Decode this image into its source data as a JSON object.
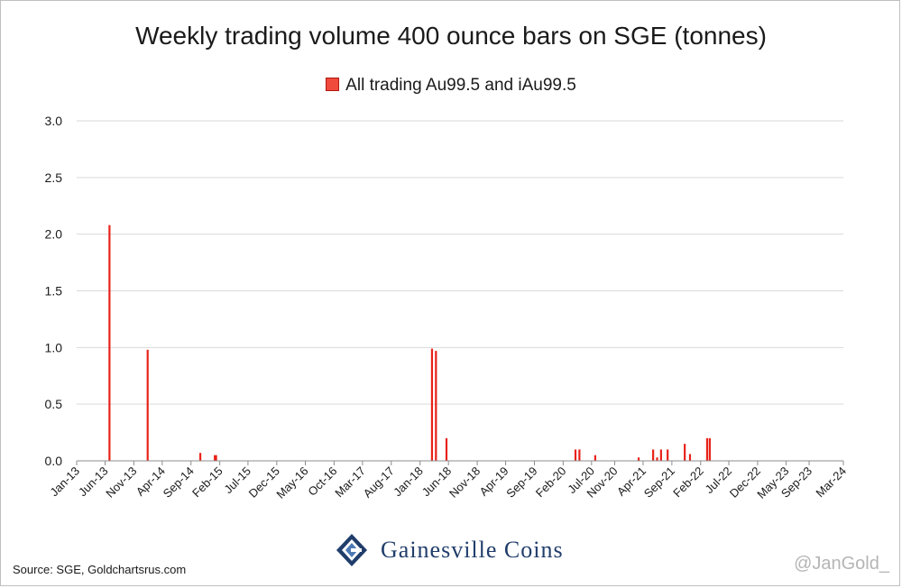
{
  "chart_data": {
    "type": "bar",
    "title": "Weekly trading volume 400 ounce bars on SGE (tonnes)",
    "legend": {
      "position": "top",
      "entries": [
        "All trading Au99.5 and iAu99.5"
      ]
    },
    "series": [
      {
        "name": "All trading Au99.5 and iAu99.5",
        "color": "#e8231a",
        "points": [
          {
            "x": "2013-06-24",
            "y": 2.08
          },
          {
            "x": "2014-01-13",
            "y": 0.98
          },
          {
            "x": "2014-10-20",
            "y": 0.07
          },
          {
            "x": "2015-01-05",
            "y": 0.05
          },
          {
            "x": "2015-01-12",
            "y": 0.05
          },
          {
            "x": "2018-03-05",
            "y": 0.99
          },
          {
            "x": "2018-03-26",
            "y": 0.97
          },
          {
            "x": "2018-05-21",
            "y": 0.2
          },
          {
            "x": "2020-04-06",
            "y": 0.1
          },
          {
            "x": "2020-04-27",
            "y": 0.1
          },
          {
            "x": "2020-07-20",
            "y": 0.05
          },
          {
            "x": "2021-03-08",
            "y": 0.03
          },
          {
            "x": "2021-05-24",
            "y": 0.1
          },
          {
            "x": "2021-06-14",
            "y": 0.03
          },
          {
            "x": "2021-07-05",
            "y": 0.1
          },
          {
            "x": "2021-08-09",
            "y": 0.1
          },
          {
            "x": "2021-11-08",
            "y": 0.15
          },
          {
            "x": "2021-12-06",
            "y": 0.06
          },
          {
            "x": "2022-03-07",
            "y": 0.2
          },
          {
            "x": "2022-03-21",
            "y": 0.2
          }
        ]
      }
    ],
    "x_axis": {
      "range": [
        "2013-01-01",
        "2024-03-01"
      ],
      "ticks": [
        {
          "date": "2013-01-01",
          "label": "Jan-13"
        },
        {
          "date": "2013-06-01",
          "label": "Jun-13"
        },
        {
          "date": "2013-11-01",
          "label": "Nov-13"
        },
        {
          "date": "2014-04-01",
          "label": "Apr-14"
        },
        {
          "date": "2014-09-01",
          "label": "Sep-14"
        },
        {
          "date": "2015-02-01",
          "label": "Feb-15"
        },
        {
          "date": "2015-07-01",
          "label": "Jul-15"
        },
        {
          "date": "2015-12-01",
          "label": "Dec-15"
        },
        {
          "date": "2016-05-01",
          "label": "May-16"
        },
        {
          "date": "2016-10-01",
          "label": "Oct-16"
        },
        {
          "date": "2017-03-01",
          "label": "Mar-17"
        },
        {
          "date": "2017-08-01",
          "label": "Aug-17"
        },
        {
          "date": "2018-01-01",
          "label": "Jan-18"
        },
        {
          "date": "2018-06-01",
          "label": "Jun-18"
        },
        {
          "date": "2018-11-01",
          "label": "Nov-18"
        },
        {
          "date": "2019-04-01",
          "label": "Apr-19"
        },
        {
          "date": "2019-09-01",
          "label": "Sep-19"
        },
        {
          "date": "2020-02-01",
          "label": "Feb-20"
        },
        {
          "date": "2020-07-01",
          "label": "Jul-20"
        },
        {
          "date": "2020-11-01",
          "label": "Nov-20"
        },
        {
          "date": "2021-04-01",
          "label": "Apr-21"
        },
        {
          "date": "2021-09-01",
          "label": "Sep-21"
        },
        {
          "date": "2022-02-01",
          "label": "Feb-22"
        },
        {
          "date": "2022-07-01",
          "label": "Jul-22"
        },
        {
          "date": "2022-12-01",
          "label": "Dec-22"
        },
        {
          "date": "2023-05-01",
          "label": "May-23"
        },
        {
          "date": "2023-09-01",
          "label": "Sep-23"
        },
        {
          "date": "2024-03-01",
          "label": "Mar-24"
        }
      ]
    },
    "y_axis": {
      "range": [
        0,
        3
      ],
      "ticks": [
        {
          "value": 0,
          "label": "0.0"
        },
        {
          "value": 0.5,
          "label": "0.5"
        },
        {
          "value": 1,
          "label": "1.0"
        },
        {
          "value": 1.5,
          "label": "1.5"
        },
        {
          "value": 2,
          "label": "2.0"
        },
        {
          "value": 2.5,
          "label": "2.5"
        },
        {
          "value": 3,
          "label": "3.0"
        }
      ]
    },
    "grid": {
      "horizontal": true,
      "vertical": false
    }
  },
  "footer": {
    "logo_text": "Gainesville Coins",
    "source": "Source: SGE, Goldchartsrus.com",
    "handle": "@JanGold_"
  },
  "colors": {
    "brand_navy": "#203d6b",
    "bar": "#e8231a",
    "legend_swatch": "#f04a3c"
  }
}
